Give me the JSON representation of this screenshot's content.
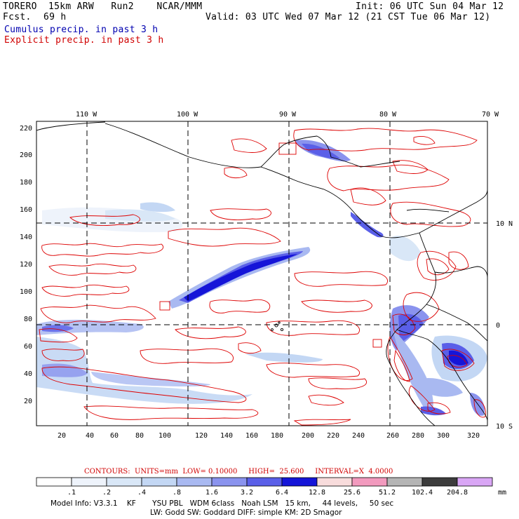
{
  "header": {
    "model": "TORERO  15km ARW   Run2    NCAR/MMM",
    "fcst_label": "Fcst.",
    "fcst_value": "69 h",
    "init": "Init: 06 UTC Sun 04 Mar 12",
    "valid": "Valid: 03 UTC Wed 07 Mar 12 (21 CST Tue 06 Mar 12)",
    "cumulus": "Cumulus precip. in past 3 h",
    "explicit": "Explicit precip. in past 3 h"
  },
  "map": {
    "lon_labels": [
      "110 W",
      "100 W",
      "90 W",
      "80 W",
      "70 W"
    ],
    "lat_labels": [
      "10 N",
      "0",
      "10 S"
    ],
    "y_ticks": [
      "220",
      "200",
      "180",
      "160",
      "140",
      "120",
      "100",
      "80",
      "60",
      "40",
      "20"
    ],
    "x_ticks": [
      "20",
      "40",
      "60",
      "80",
      "100",
      "120",
      "140",
      "160",
      "180",
      "200",
      "220",
      "240",
      "260",
      "280",
      "300",
      "320"
    ]
  },
  "contours": {
    "caption": "CONTOURS:  UNITS=mm  LOW= 0.10000     HIGH=  25.600     INTERVAL=X  4.0000"
  },
  "colorbar": {
    "labels": [
      ".1",
      ".2",
      ".4",
      ".8",
      "1.6",
      "3.2",
      "6.4",
      "12.8",
      "25.6",
      "51.2",
      "102.4",
      "204.8"
    ],
    "unit": "mm",
    "colors": [
      "#ffffff",
      "#eef3fb",
      "#d9e7f7",
      "#c3d7f4",
      "#a9b9f1",
      "#8a93ee",
      "#5a5fe8",
      "#1515d8",
      "#f8dcdc",
      "#f29abe",
      "#b5b5b5",
      "#3c3c3c",
      "#d9a6f5"
    ]
  },
  "model_info": {
    "line1": "Model Info: V3.3.1    KF       YSU PBL   WDM 6class   Noah LSM   15 km,     44 levels,     50 sec",
    "line2": "LW: Godd SW: Goddard DIFF: simple KM: 2D Smagor"
  }
}
